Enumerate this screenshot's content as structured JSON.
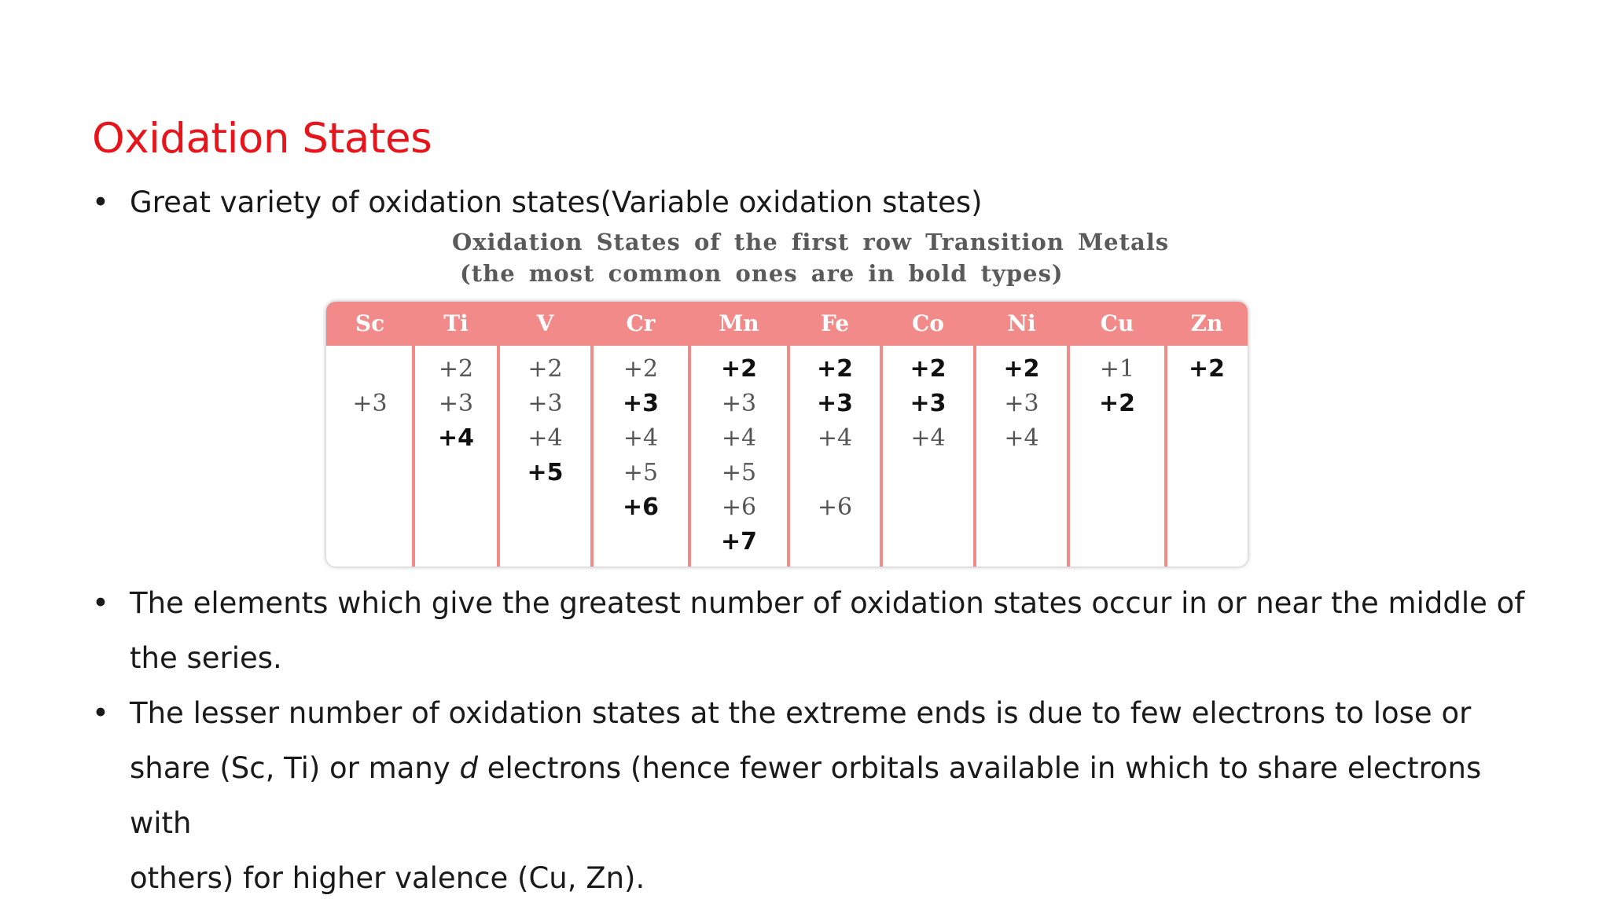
{
  "slide": {
    "title": "Oxidation States",
    "bullets": [
      "Great variety of oxidation states(Variable oxidation states)",
      "The elements which give the greatest number of oxidation states occur in or near the middle of\nthe series.",
      "The lesser number of oxidation states at the extreme ends is due to few electrons to lose or\nshare (Sc, Ti) or many d electrons (hence fewer orbitals available in which to share electrons with\nothers) for higher valence (Cu, Zn)."
    ],
    "bullet_symbol": "•"
  },
  "table": {
    "caption_line1": "Oxidation States of the first row Transition Metals",
    "caption_line2": "(the most common ones are in bold types)",
    "header_color": "#f28a8a",
    "columns": [
      {
        "element": "Sc",
        "states": [
          {
            "row": 2,
            "value": "+3",
            "bold": false
          }
        ]
      },
      {
        "element": "Ti",
        "states": [
          {
            "row": 1,
            "value": "+2",
            "bold": false
          },
          {
            "row": 2,
            "value": "+3",
            "bold": false
          },
          {
            "row": 3,
            "value": "+4",
            "bold": true
          }
        ]
      },
      {
        "element": "V",
        "states": [
          {
            "row": 1,
            "value": "+2",
            "bold": false
          },
          {
            "row": 2,
            "value": "+3",
            "bold": false
          },
          {
            "row": 3,
            "value": "+4",
            "bold": false
          },
          {
            "row": 4,
            "value": "+5",
            "bold": true
          }
        ]
      },
      {
        "element": "Cr",
        "states": [
          {
            "row": 1,
            "value": "+2",
            "bold": false
          },
          {
            "row": 2,
            "value": "+3",
            "bold": true
          },
          {
            "row": 3,
            "value": "+4",
            "bold": false
          },
          {
            "row": 4,
            "value": "+5",
            "bold": false
          },
          {
            "row": 5,
            "value": "+6",
            "bold": true
          }
        ]
      },
      {
        "element": "Mn",
        "states": [
          {
            "row": 1,
            "value": "+2",
            "bold": true
          },
          {
            "row": 2,
            "value": "+3",
            "bold": false
          },
          {
            "row": 3,
            "value": "+4",
            "bold": false
          },
          {
            "row": 4,
            "value": "+5",
            "bold": false
          },
          {
            "row": 5,
            "value": "+6",
            "bold": false
          },
          {
            "row": 6,
            "value": "+7",
            "bold": true
          }
        ]
      },
      {
        "element": "Fe",
        "states": [
          {
            "row": 1,
            "value": "+2",
            "bold": true
          },
          {
            "row": 2,
            "value": "+3",
            "bold": true
          },
          {
            "row": 3,
            "value": "+4",
            "bold": false
          },
          {
            "row": 5,
            "value": "+6",
            "bold": false
          }
        ]
      },
      {
        "element": "Co",
        "states": [
          {
            "row": 1,
            "value": "+2",
            "bold": true
          },
          {
            "row": 2,
            "value": "+3",
            "bold": true
          },
          {
            "row": 3,
            "value": "+4",
            "bold": false
          }
        ]
      },
      {
        "element": "Ni",
        "states": [
          {
            "row": 1,
            "value": "+2",
            "bold": true
          },
          {
            "row": 2,
            "value": "+3",
            "bold": false
          },
          {
            "row": 3,
            "value": "+4",
            "bold": false
          }
        ]
      },
      {
        "element": "Cu",
        "states": [
          {
            "row": 1,
            "value": "+1",
            "bold": false
          },
          {
            "row": 2,
            "value": "+2",
            "bold": true
          }
        ]
      },
      {
        "element": "Zn",
        "states": [
          {
            "row": 1,
            "value": "+2",
            "bold": true
          }
        ]
      }
    ]
  }
}
